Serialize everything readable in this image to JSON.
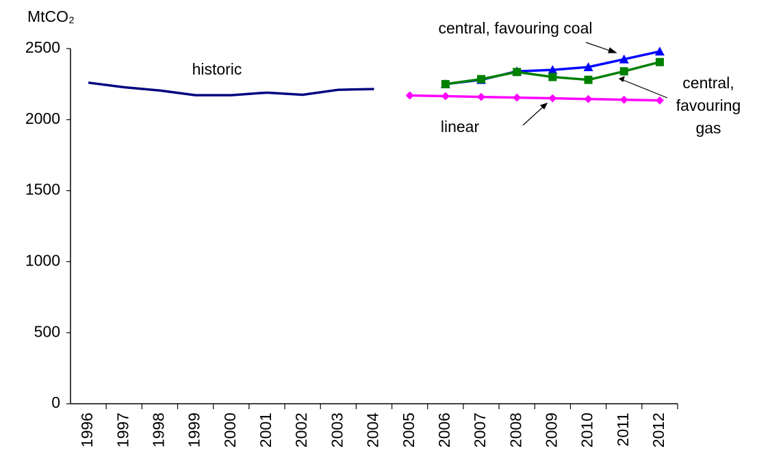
{
  "chart_data": {
    "type": "line",
    "y_axis_label": "MtCO₂",
    "categories": [
      "1996",
      "1997",
      "1998",
      "1999",
      "2000",
      "2001",
      "2002",
      "2003",
      "2004",
      "2005",
      "2006",
      "2007",
      "2008",
      "2009",
      "2010",
      "2011",
      "2012"
    ],
    "ylim": [
      0,
      2500
    ],
    "yticks": [
      0,
      500,
      1000,
      1500,
      2000,
      2500
    ],
    "series": [
      {
        "name": "historic",
        "color": "#000080",
        "marker": "none",
        "values": [
          2260,
          2228,
          2205,
          2172,
          2172,
          2190,
          2175,
          2210,
          2215,
          null,
          null,
          null,
          null,
          null,
          null,
          null,
          null
        ]
      },
      {
        "name": "linear",
        "color": "#ff00ff",
        "marker": "diamond",
        "values": [
          null,
          null,
          null,
          null,
          null,
          null,
          null,
          null,
          null,
          2170,
          2165,
          2160,
          2155,
          2150,
          2145,
          2140,
          2135
        ]
      },
      {
        "name": "central, favouring coal",
        "color": "#0000ff",
        "marker": "triangle",
        "values": [
          null,
          null,
          null,
          null,
          null,
          null,
          null,
          null,
          null,
          null,
          2250,
          2280,
          2340,
          2350,
          2370,
          2425,
          2480
        ]
      },
      {
        "name_lines": [
          "central,",
          "favouring",
          "gas"
        ],
        "color": "#008000",
        "marker": "square",
        "values": [
          null,
          null,
          null,
          null,
          null,
          null,
          null,
          null,
          null,
          null,
          2250,
          2285,
          2335,
          2300,
          2280,
          2340,
          2405
        ]
      }
    ]
  }
}
